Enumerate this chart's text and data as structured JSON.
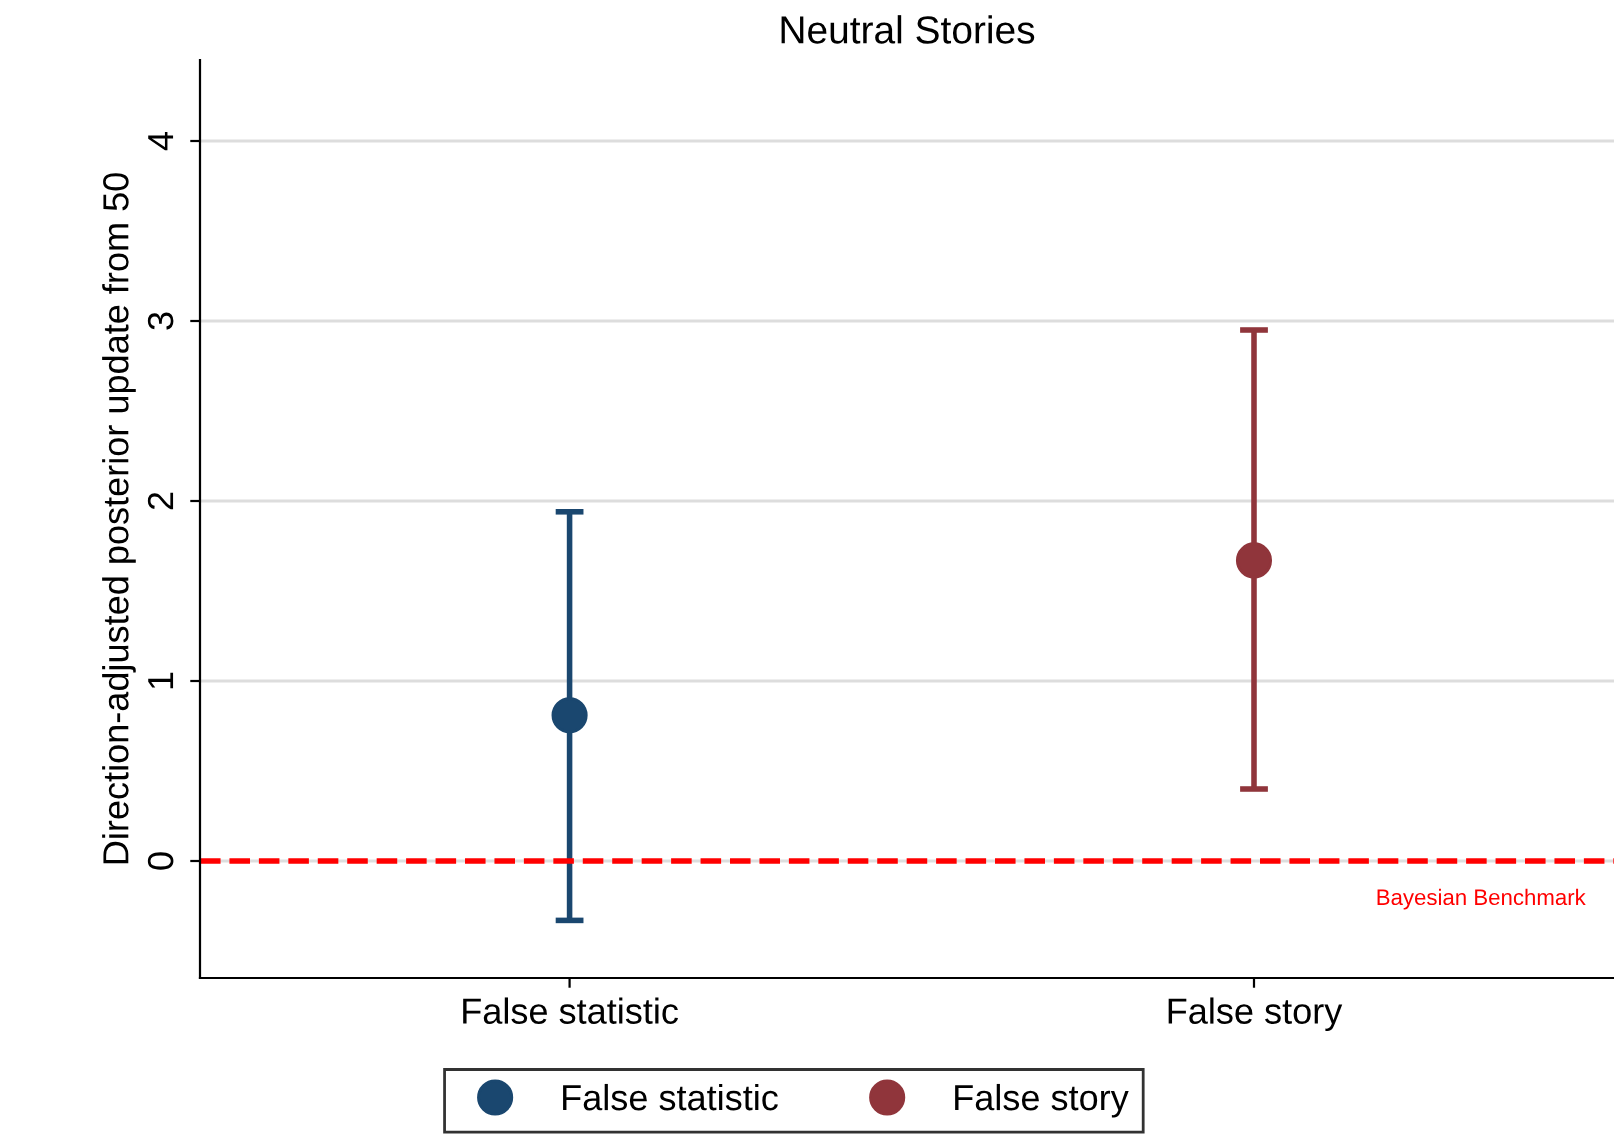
{
  "chart_data": {
    "type": "scatter",
    "title": "Neutral Stories",
    "ylabel": "Direction-adjusted posterior update from 50",
    "categories": [
      "False statistic",
      "False story"
    ],
    "series": [
      {
        "name": "False statistic",
        "color": "#1a476f",
        "values": [
          0.81,
          null
        ],
        "errors": [
          [
            -0.33,
            1.94
          ],
          null
        ]
      },
      {
        "name": "False story",
        "color": "#90353b",
        "values": [
          null,
          1.67
        ],
        "errors": [
          null,
          [
            0.4,
            2.95
          ]
        ]
      }
    ],
    "ylim": [
      -0.65,
      4.45
    ],
    "yticks": [
      0,
      1,
      2,
      3,
      4
    ],
    "grid": "y",
    "legend": "bottom",
    "marker": "circle",
    "ref_lines": [
      {
        "axis": "y",
        "value": 0,
        "label": "Bayesian Benchmark",
        "color": "#ff0000",
        "line_style": "dashed"
      }
    ]
  }
}
